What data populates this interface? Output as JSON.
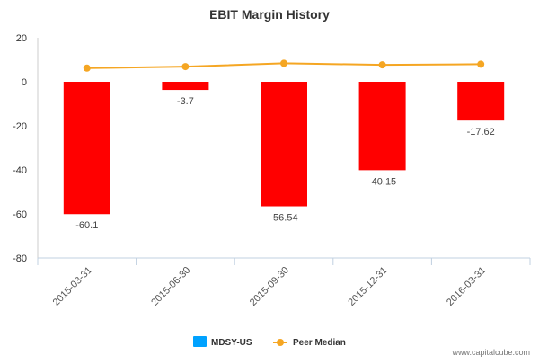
{
  "chart_data": {
    "type": "bar",
    "title": "EBIT Margin History",
    "categories": [
      "2015-03-31",
      "2015-06-30",
      "2015-09-30",
      "2015-12-31",
      "2016-03-31"
    ],
    "series": [
      {
        "name": "MDSY-US",
        "type": "bar",
        "values": [
          -60.1,
          -3.7,
          -56.54,
          -40.15,
          -17.62
        ],
        "labels": [
          "-60.1",
          "-3.7",
          "-56.54",
          "-40.15",
          "-17.62"
        ],
        "color": "#ff0000",
        "legend_color": "#00a2ff"
      },
      {
        "name": "Peer Median",
        "type": "line",
        "values": [
          6.2,
          6.9,
          8.4,
          7.7,
          8.0
        ],
        "color": "#f5a623"
      }
    ],
    "ylim": [
      -80,
      20
    ],
    "yticks": [
      "20",
      "0",
      "-20",
      "-40",
      "-60",
      "-80"
    ],
    "xlabel": "",
    "ylabel": "",
    "grid": false,
    "legend_position": "bottom-center"
  },
  "watermark": "www.capitalcube.com"
}
